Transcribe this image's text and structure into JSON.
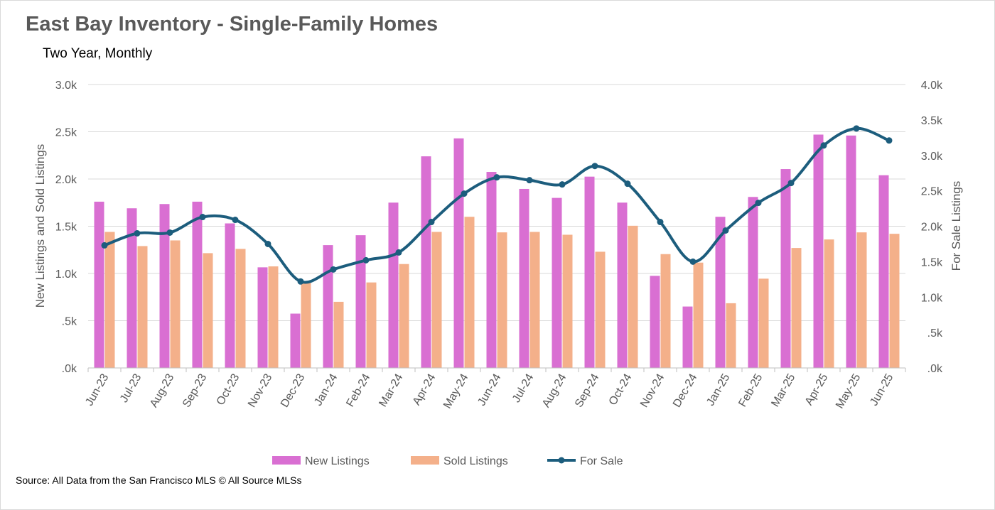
{
  "title": "East Bay Inventory - Single-Family Homes",
  "subtitle": "Two Year, Monthly",
  "source": "Source: All Data from the San Francisco MLS © All Source MLSs",
  "chart_data": {
    "type": "bar",
    "categories": [
      "Jun-23",
      "Jul-23",
      "Aug-23",
      "Sep-23",
      "Oct-23",
      "Nov-23",
      "Dec-23",
      "Jan-24",
      "Feb-24",
      "Mar-24",
      "Apr-24",
      "May-24",
      "Jun-24",
      "Jul-24",
      "Aug-24",
      "Sep-24",
      "Oct-24",
      "Nov-24",
      "Dec-24",
      "Jan-25",
      "Feb-25",
      "Mar-25",
      "Apr-25",
      "May-25",
      "Jun-25"
    ],
    "series": [
      {
        "name": "New Listings",
        "type": "bar",
        "axis": "left",
        "color": "#d96fd2",
        "values": [
          1760,
          1690,
          1735,
          1760,
          1530,
          1065,
          575,
          1300,
          1405,
          1750,
          2240,
          2430,
          2075,
          1895,
          1800,
          2025,
          1750,
          975,
          650,
          1600,
          1810,
          2105,
          2470,
          2460,
          2040
        ]
      },
      {
        "name": "Sold Listings",
        "type": "bar",
        "axis": "left",
        "color": "#f4b08a",
        "values": [
          1440,
          1290,
          1350,
          1215,
          1260,
          1075,
          910,
          700,
          905,
          1100,
          1440,
          1600,
          1435,
          1440,
          1410,
          1230,
          1505,
          1205,
          1115,
          685,
          945,
          1270,
          1360,
          1435,
          1420
        ]
      },
      {
        "name": "For Sale",
        "type": "line",
        "axis": "right",
        "color": "#1c5d7d",
        "values": [
          1730,
          1900,
          1910,
          2130,
          2090,
          1750,
          1220,
          1390,
          1520,
          1630,
          2060,
          2460,
          2690,
          2650,
          2590,
          2850,
          2600,
          2060,
          1500,
          1940,
          2330,
          2610,
          3140,
          3380,
          3210
        ]
      }
    ],
    "ylabel": "New Listings and Sold Listings",
    "y2label": "For Sale Listings",
    "ylim": [
      0,
      3000
    ],
    "y2lim": [
      0,
      4000
    ],
    "yticks": [
      ".0k",
      ".5k",
      "1.0k",
      "1.5k",
      "2.0k",
      "2.5k",
      "3.0k"
    ],
    "y2ticks": [
      ".0k",
      ".5k",
      "1.0k",
      "1.5k",
      "2.0k",
      "2.5k",
      "3.0k",
      "3.5k",
      "4.0k"
    ],
    "grid": true,
    "legend": "bottom"
  }
}
